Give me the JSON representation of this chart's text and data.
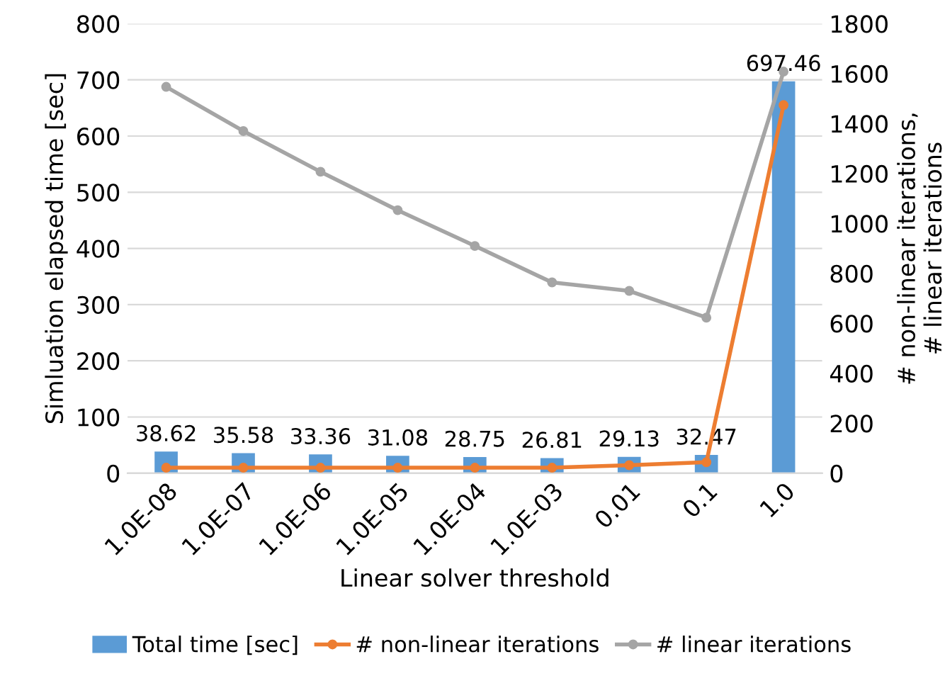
{
  "chart_data": {
    "type": "bar",
    "xlabel": "Linear solver threshold",
    "ylabel": "Simluation elapsed time [sec]",
    "y2label": "# non-linear iterations,\n# linear iterations",
    "categories": [
      "1.0E-08",
      "1.0E-07",
      "1.0E-06",
      "1.0E-05",
      "1.0E-04",
      "1.0E-03",
      "0.01",
      "0.1",
      "1.0"
    ],
    "series": [
      {
        "name": "Total time [sec]",
        "color": "#5b9bd5",
        "values": [
          38.62,
          35.58,
          33.36,
          31.08,
          28.75,
          26.81,
          29.13,
          32.47,
          697.46
        ],
        "value_labels": [
          "38.62",
          "35.58",
          "33.36",
          "31.08",
          "28.75",
          "26.81",
          "29.13",
          "32.47",
          "697.46"
        ]
      },
      {
        "name": "# non-linear iterations",
        "type": "line",
        "axis": "y2",
        "color": "#ed7d31",
        "marker": "circle",
        "values": [
          22,
          22,
          22,
          22,
          22,
          22,
          32,
          44,
          1474
        ]
      },
      {
        "name": "# linear iterations",
        "type": "line",
        "axis": "y2",
        "color": "#a5a5a5",
        "marker": "circle",
        "values": [
          1547,
          1370,
          1207,
          1053,
          910,
          764,
          730,
          623,
          1608
        ]
      }
    ],
    "ylim": [
      0,
      800
    ],
    "yticks": [
      0,
      100,
      200,
      300,
      400,
      500,
      600,
      700,
      800
    ],
    "y2lim": [
      0,
      1800
    ],
    "y2ticks": [
      0,
      200,
      400,
      600,
      800,
      1000,
      1200,
      1400,
      1600,
      1800
    ],
    "grid": "y",
    "legend": "bottom"
  }
}
